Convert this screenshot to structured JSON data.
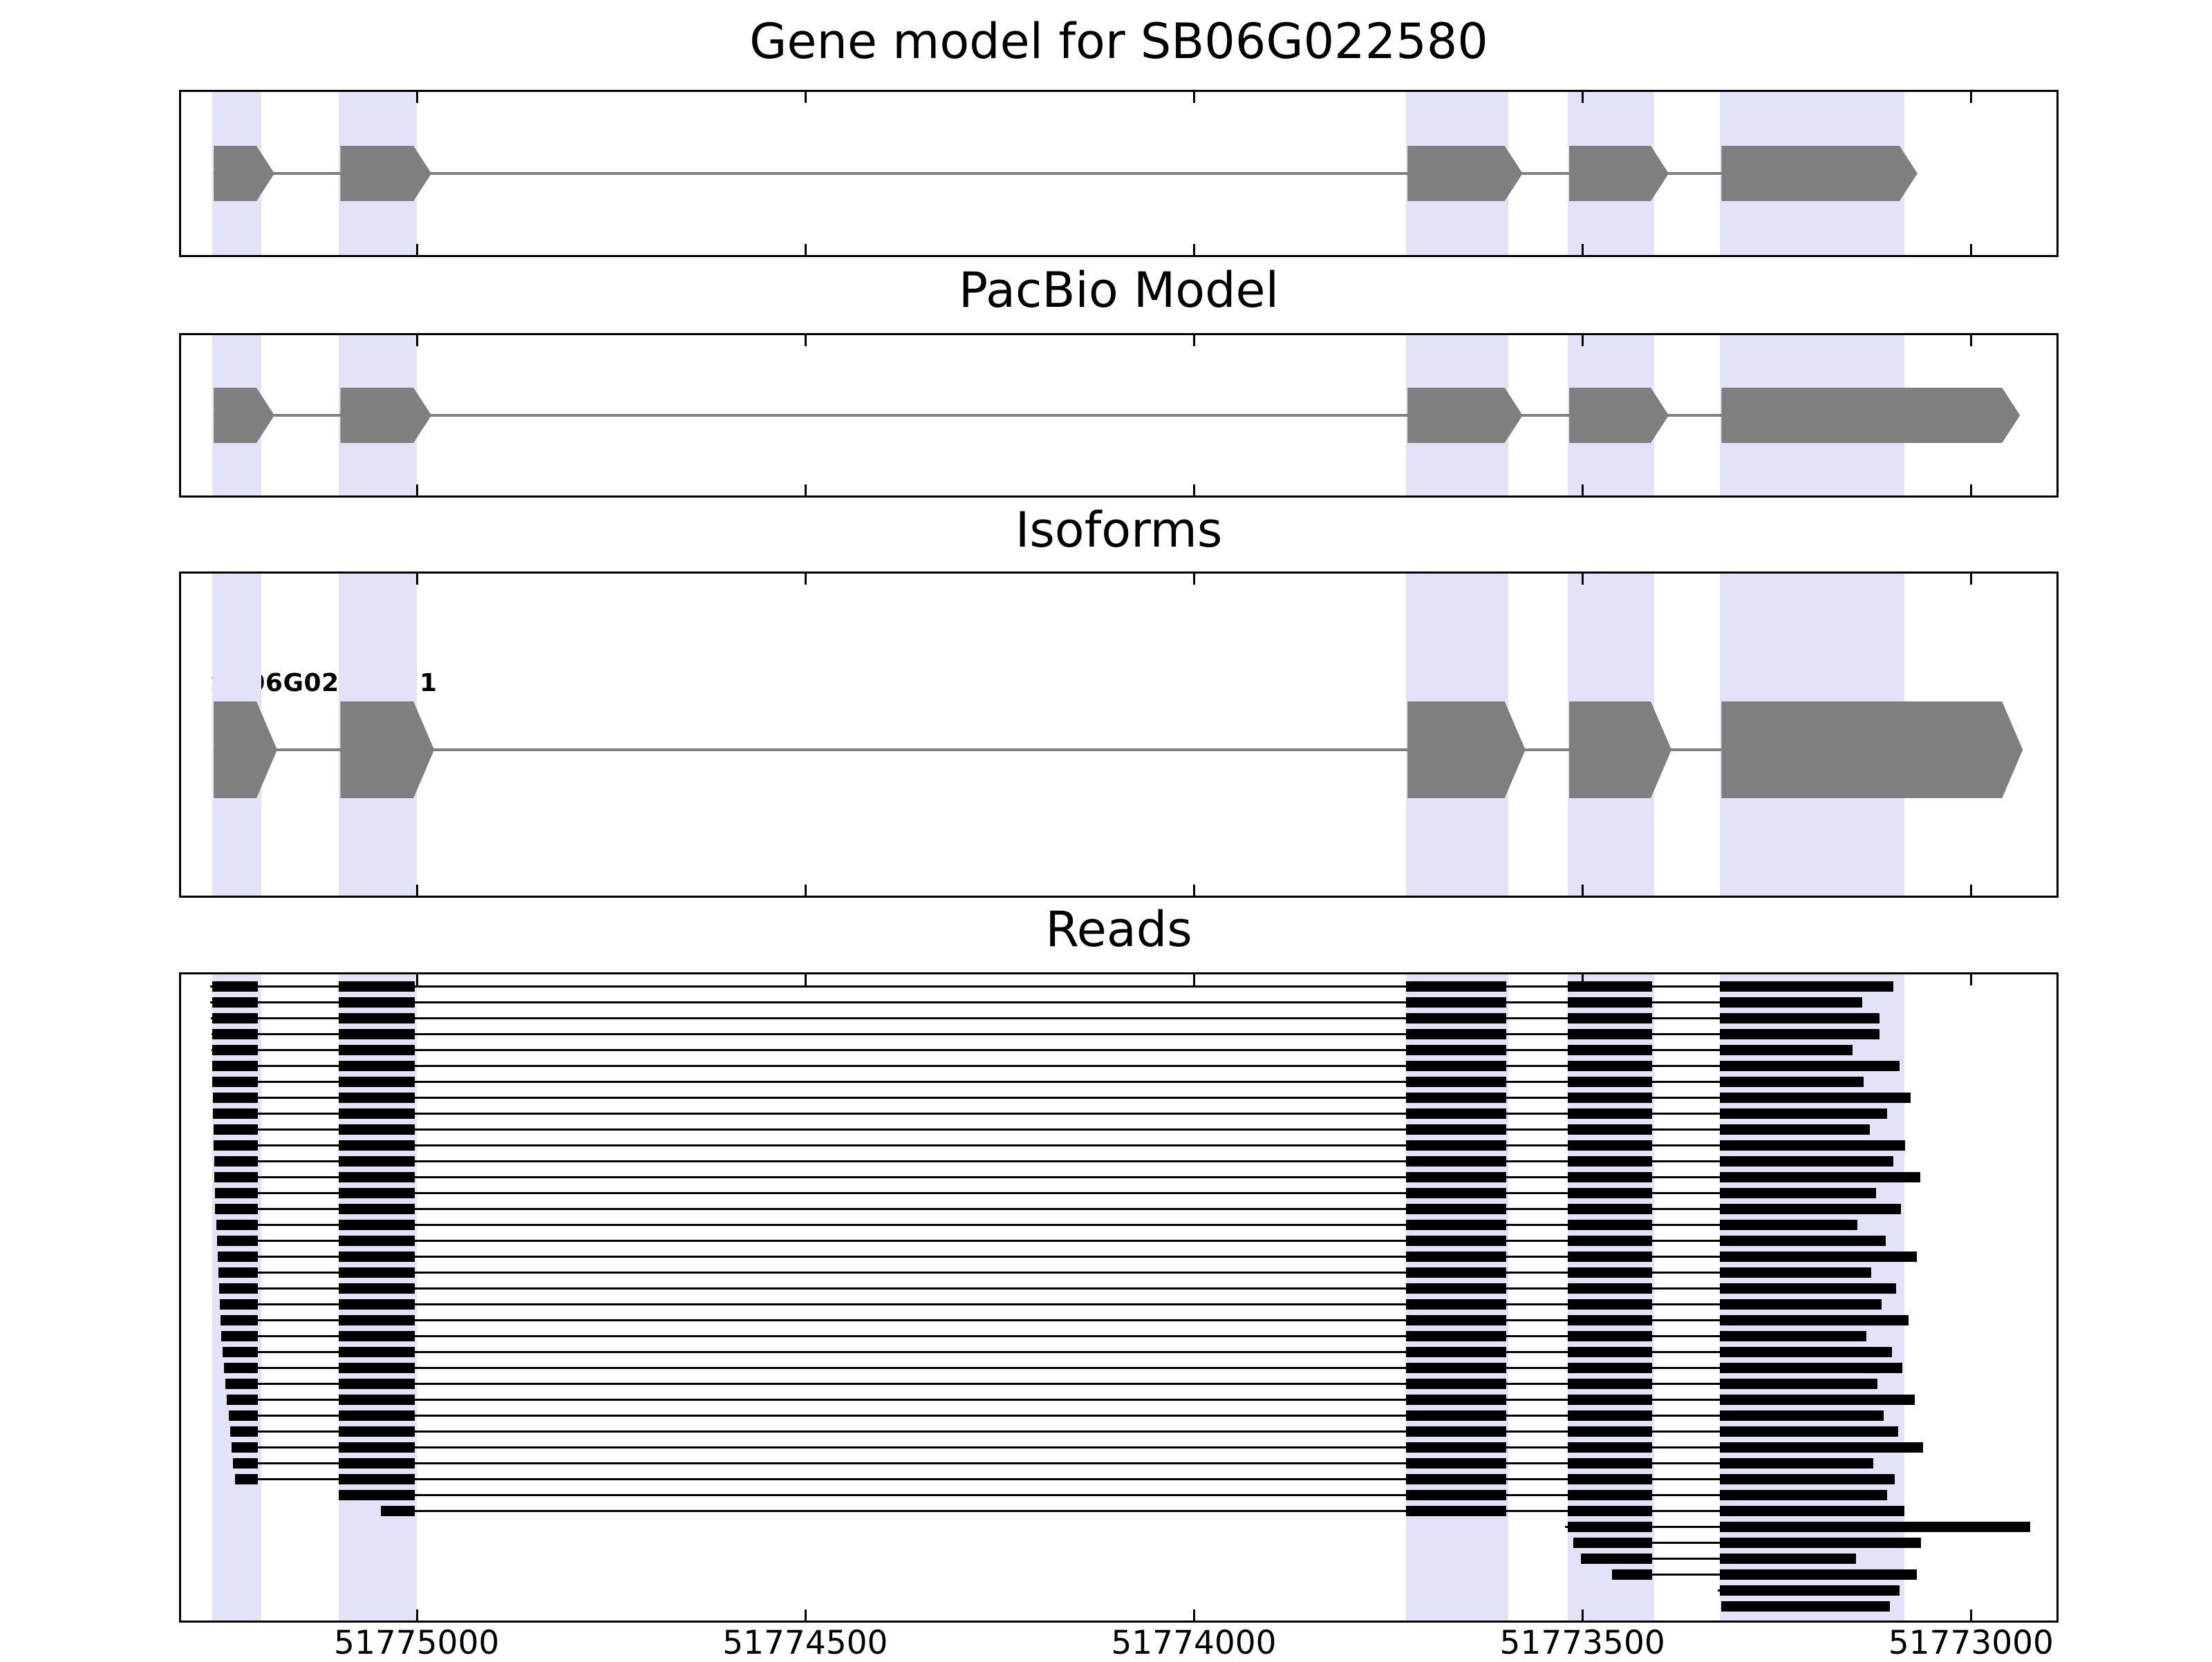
{
  "chart_data": {
    "type": "gene-model-tracks",
    "title": "Gene model for SB06G022580",
    "x_axis": {
      "range_left": 51775303,
      "range_right": 51772890,
      "reversed": true,
      "ticks": [
        51775000,
        51774500,
        51774000,
        51773500,
        51773000
      ],
      "tick_labels": [
        "51775000",
        "51774500",
        "51774000",
        "51773500",
        "51773000"
      ]
    },
    "colors": {
      "exon": "#7f7f7f",
      "intron_line": "#7f7f7f",
      "read": "#000000",
      "highlight_band": "#e2e2f8",
      "background": "#ffffff",
      "border": "#000000"
    },
    "highlight_regions": [
      [
        51775263,
        51775200
      ],
      [
        51775100,
        51775000
      ],
      [
        51773727,
        51773595
      ],
      [
        51773519,
        51773408
      ],
      [
        51773323,
        51773086
      ]
    ],
    "tracks": [
      {
        "name": "gene_model",
        "title": "Gene model for SB06G022580",
        "exons": [
          {
            "start": 51775261,
            "end": 51775206
          },
          {
            "start": 51775098,
            "end": 51775004
          },
          {
            "start": 51773725,
            "end": 51773600
          },
          {
            "start": 51773517,
            "end": 51773412
          },
          {
            "start": 51773321,
            "end": 51773092
          }
        ]
      },
      {
        "name": "pacbio_model",
        "title": "PacBio Model",
        "exons": [
          {
            "start": 51775261,
            "end": 51775206
          },
          {
            "start": 51775098,
            "end": 51775004
          },
          {
            "start": 51773725,
            "end": 51773600
          },
          {
            "start": 51773517,
            "end": 51773412
          },
          {
            "start": 51773321,
            "end": 51772960
          }
        ]
      },
      {
        "name": "isoforms",
        "title": "Isoforms",
        "isoforms": [
          {
            "label": "SB06G022580.1",
            "exons": [
              {
                "start": 51775261,
                "end": 51775206
              },
              {
                "start": 51775098,
                "end": 51775004
              },
              {
                "start": 51773725,
                "end": 51773600
              },
              {
                "start": 51773517,
                "end": 51773412
              },
              {
                "start": 51773321,
                "end": 51772960
              }
            ]
          }
        ]
      },
      {
        "name": "reads",
        "title": "Reads",
        "exon_blocks": [
          [
            51775263,
            51775204
          ],
          [
            51775100,
            51775002
          ],
          [
            51773727,
            51773598
          ],
          [
            51773519,
            51773410
          ],
          [
            51773323,
            null
          ]
        ],
        "reads": [
          [
            51775266,
            51773100
          ],
          [
            51775266,
            51773140
          ],
          [
            51775265,
            51773118
          ],
          [
            51775264,
            51773118
          ],
          [
            51775264,
            51773152
          ],
          [
            51775263,
            51773092
          ],
          [
            51775263,
            51773138
          ],
          [
            51775262,
            51773078
          ],
          [
            51775262,
            51773108
          ],
          [
            51775261,
            51773130
          ],
          [
            51775261,
            51773085
          ],
          [
            51775260,
            51773100
          ],
          [
            51775260,
            51773065
          ],
          [
            51775259,
            51773122
          ],
          [
            51775259,
            51773090
          ],
          [
            51775258,
            51773146
          ],
          [
            51775257,
            51773110
          ],
          [
            51775256,
            51773070
          ],
          [
            51775255,
            51773128
          ],
          [
            51775254,
            51773096
          ],
          [
            51775253,
            51773115
          ],
          [
            51775252,
            51773080
          ],
          [
            51775251,
            51773135
          ],
          [
            51775250,
            51773102
          ],
          [
            51775248,
            51773088
          ],
          [
            51775246,
            51773120
          ],
          [
            51775244,
            51773072
          ],
          [
            51775242,
            51773112
          ],
          [
            51775240,
            51773094
          ],
          [
            51775238,
            51773062
          ],
          [
            51775236,
            51773126
          ],
          [
            51775234,
            51773098
          ],
          [
            51775100,
            51773108
          ],
          [
            51775046,
            51773086
          ],
          [
            51773522,
            51772924
          ],
          [
            51773512,
            51773064
          ],
          [
            51773502,
            51773148
          ],
          [
            51773462,
            51773070
          ],
          [
            51773326,
            51773092
          ],
          [
            51773321,
            51773104
          ]
        ]
      }
    ]
  }
}
